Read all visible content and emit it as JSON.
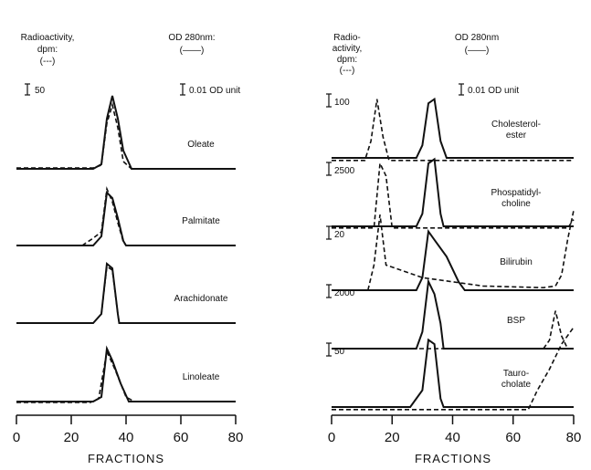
{
  "chart_data": [
    {
      "type": "line",
      "xlabel": "FRACTIONS",
      "xlim": [
        0,
        80
      ],
      "xticks": [
        "0",
        "20",
        "40",
        "60",
        "80"
      ],
      "header": {
        "radioactivity": [
          "Radioactivity,",
          "dpm:",
          "(---)"
        ],
        "od": [
          "OD 280nm:",
          "(——)"
        ]
      },
      "scale_bars": {
        "radioactivity": "50",
        "od": "0.01 OD unit"
      },
      "traces": [
        {
          "name": "Oleate",
          "od": [
            [
              0,
              0
            ],
            [
              28,
              0
            ],
            [
              31,
              5
            ],
            [
              33,
              55
            ],
            [
              35,
              80
            ],
            [
              37,
              55
            ],
            [
              39,
              20
            ],
            [
              42,
              0
            ],
            [
              80,
              0
            ]
          ],
          "radio": [
            [
              0,
              1
            ],
            [
              28,
              1
            ],
            [
              31,
              4
            ],
            [
              33,
              50
            ],
            [
              35,
              70
            ],
            [
              37,
              45
            ],
            [
              39,
              8
            ],
            [
              42,
              0
            ],
            [
              80,
              0
            ]
          ]
        },
        {
          "name": "Palmitate",
          "od": [
            [
              0,
              0
            ],
            [
              28,
              0
            ],
            [
              31,
              10
            ],
            [
              33,
              58
            ],
            [
              35,
              52
            ],
            [
              37,
              30
            ],
            [
              39,
              5
            ],
            [
              40,
              0
            ],
            [
              80,
              0
            ]
          ],
          "radio": [
            [
              0,
              0
            ],
            [
              24,
              0
            ],
            [
              28,
              8
            ],
            [
              31,
              15
            ],
            [
              33,
              62
            ],
            [
              35,
              48
            ],
            [
              37,
              25
            ],
            [
              39,
              4
            ],
            [
              40,
              0
            ],
            [
              80,
              0
            ]
          ]
        },
        {
          "name": "Arachidonate",
          "od": [
            [
              0,
              0
            ],
            [
              28,
              0
            ],
            [
              31,
              10
            ],
            [
              33,
              65
            ],
            [
              35,
              60
            ],
            [
              37,
              10
            ],
            [
              37.5,
              0
            ],
            [
              80,
              0
            ]
          ],
          "radio": [
            [
              0,
              0
            ],
            [
              28,
              0
            ],
            [
              31,
              10
            ],
            [
              33,
              62
            ],
            [
              35,
              58
            ],
            [
              37,
              10
            ],
            [
              37.5,
              0
            ],
            [
              80,
              0
            ]
          ]
        },
        {
          "name": "Linoleate",
          "od": [
            [
              0,
              0
            ],
            [
              28,
              0
            ],
            [
              31,
              5
            ],
            [
              33,
              58
            ],
            [
              35,
              45
            ],
            [
              38,
              20
            ],
            [
              41,
              0
            ],
            [
              80,
              0
            ]
          ],
          "radio": [
            [
              0,
              -1
            ],
            [
              27,
              -1
            ],
            [
              30,
              3
            ],
            [
              33,
              55
            ],
            [
              36,
              35
            ],
            [
              40,
              5
            ],
            [
              43,
              0
            ],
            [
              80,
              0
            ]
          ]
        }
      ]
    },
    {
      "type": "line",
      "xlabel": "FRACTIONS",
      "xlim": [
        0,
        80
      ],
      "xticks": [
        "0",
        "20",
        "40",
        "60",
        "80"
      ],
      "header": {
        "radioactivity": [
          "Radio-",
          "activity,",
          "dpm:",
          "(---)"
        ],
        "od": [
          "OD 280nm",
          "(——)"
        ]
      },
      "scale_bars": {
        "od": "0.01 OD unit"
      },
      "traces": [
        {
          "name": "Cholesterol-ester",
          "scale_bar": "100",
          "od": [
            [
              0,
              0
            ],
            [
              28,
              0
            ],
            [
              30,
              15
            ],
            [
              32,
              65
            ],
            [
              34,
              70
            ],
            [
              36,
              20
            ],
            [
              38,
              0
            ],
            [
              80,
              0
            ]
          ],
          "radio": [
            [
              0,
              -3
            ],
            [
              11,
              -3
            ],
            [
              13,
              20
            ],
            [
              15,
              70
            ],
            [
              17,
              25
            ],
            [
              19,
              -3
            ],
            [
              80,
              -3
            ]
          ]
        },
        {
          "name": "Phospatidyl-choline",
          "scale_bar": "2500",
          "od": [
            [
              0,
              0
            ],
            [
              28,
              0
            ],
            [
              30,
              15
            ],
            [
              32,
              75
            ],
            [
              34,
              80
            ],
            [
              36,
              15
            ],
            [
              37,
              0
            ],
            [
              80,
              0
            ]
          ],
          "radio": [
            [
              0,
              -2
            ],
            [
              14,
              -2
            ],
            [
              16,
              75
            ],
            [
              18,
              60
            ],
            [
              20,
              -2
            ],
            [
              78,
              -2
            ],
            [
              80,
              8
            ]
          ]
        },
        {
          "name": "Bilirubin",
          "scale_bar": "20",
          "od": [
            [
              0,
              0
            ],
            [
              28,
              0
            ],
            [
              30,
              15
            ],
            [
              32,
              70
            ],
            [
              34,
              60
            ],
            [
              38,
              40
            ],
            [
              42,
              10
            ],
            [
              44,
              0
            ],
            [
              80,
              0
            ]
          ],
          "radio": [
            [
              0,
              0
            ],
            [
              12,
              0
            ],
            [
              14,
              30
            ],
            [
              16,
              90
            ],
            [
              18,
              30
            ],
            [
              30,
              15
            ],
            [
              50,
              5
            ],
            [
              70,
              3
            ],
            [
              74,
              5
            ],
            [
              76,
              18
            ],
            [
              78,
              60
            ],
            [
              80,
              95
            ]
          ]
        },
        {
          "name": "BSP",
          "scale_bar": "2000",
          "od": [
            [
              0,
              0
            ],
            [
              28,
              0
            ],
            [
              30,
              20
            ],
            [
              32,
              80
            ],
            [
              34,
              65
            ],
            [
              36,
              30
            ],
            [
              37,
              0
            ],
            [
              80,
              0
            ]
          ],
          "radio": [
            [
              0,
              0
            ],
            [
              70,
              0
            ],
            [
              72,
              10
            ],
            [
              74,
              45
            ],
            [
              76,
              15
            ],
            [
              78,
              0
            ],
            [
              80,
              0
            ]
          ]
        },
        {
          "name": "Tauro-cholate",
          "scale_bar": "50",
          "od": [
            [
              0,
              0
            ],
            [
              26,
              0
            ],
            [
              30,
              20
            ],
            [
              32,
              80
            ],
            [
              34,
              75
            ],
            [
              36,
              10
            ],
            [
              37,
              0
            ],
            [
              80,
              0
            ]
          ],
          "radio": [
            [
              0,
              -3
            ],
            [
              65,
              -3
            ],
            [
              68,
              20
            ],
            [
              72,
              45
            ],
            [
              76,
              75
            ],
            [
              80,
              95
            ]
          ]
        }
      ]
    }
  ]
}
